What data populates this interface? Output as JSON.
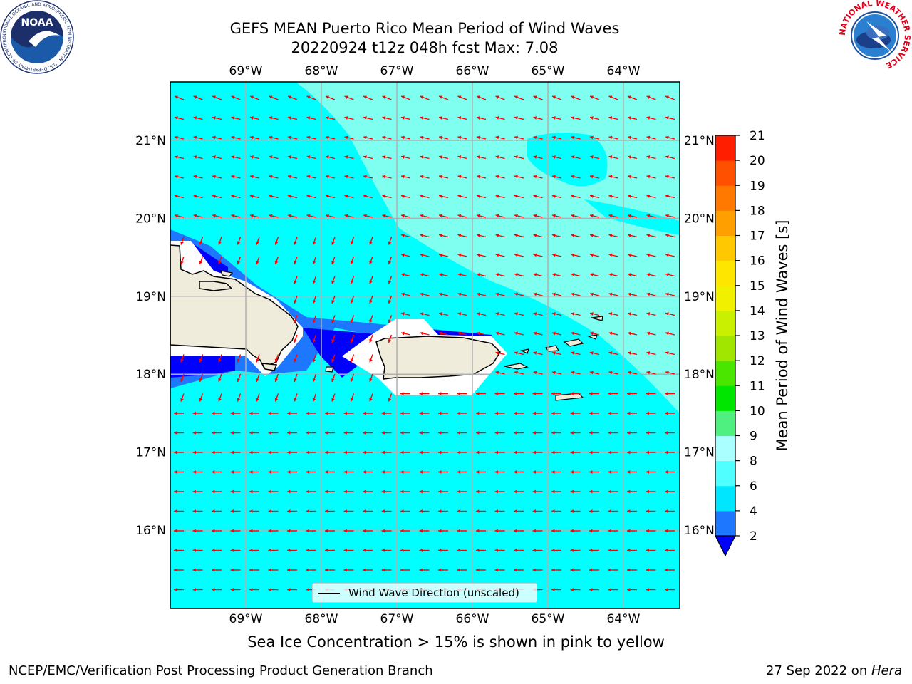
{
  "title": {
    "line1": "GEFS MEAN Puerto Rico Mean Period of Wind Waves",
    "line2": "20220924 t12z 048h fcst   Max: 7.08"
  },
  "map": {
    "lon_labels": [
      "69°W",
      "68°W",
      "67°W",
      "66°W",
      "65°W",
      "64°W"
    ],
    "lat_labels": [
      "21°N",
      "20°N",
      "19°N",
      "18°N",
      "17°N",
      "16°N"
    ],
    "background_color": "#00ffff",
    "vector_color": "#ff0000",
    "legend_label": "Wind Wave Direction (unscaled)"
  },
  "colorbar": {
    "label": "Mean Period of Wind Waves [s]",
    "ticks": [
      "2",
      "4",
      "6",
      "8",
      "9",
      "10",
      "11",
      "12",
      "13",
      "14",
      "15",
      "16",
      "17",
      "18",
      "19",
      "20",
      "21"
    ],
    "colors": [
      "#1e78ff",
      "#00e6ff",
      "#50ffff",
      "#aaffff",
      "#50f080",
      "#00e600",
      "#4be600",
      "#a0e600",
      "#c8f000",
      "#f0f000",
      "#ffe600",
      "#ffc800",
      "#ffa000",
      "#ff7800",
      "#ff5000",
      "#ff1e00"
    ],
    "under_color": "#0000ff"
  },
  "logos": {
    "noaa_text": "NOAA",
    "noaa_ring": "NATIONAL OCEANIC AND ATMOSPHERIC ADMINISTRATION · U.S. DEPARTMENT OF COMMERCE",
    "nws_ring": "NATIONAL WEATHER SERVICE"
  },
  "footnote": "Sea Ice Concentration > 15% is shown in pink to yellow",
  "footer": {
    "left": "NCEP/EMC/Verification Post Processing Product Generation Branch",
    "right_prefix": "27 Sep 2022 on ",
    "right_host": "Hera"
  }
}
